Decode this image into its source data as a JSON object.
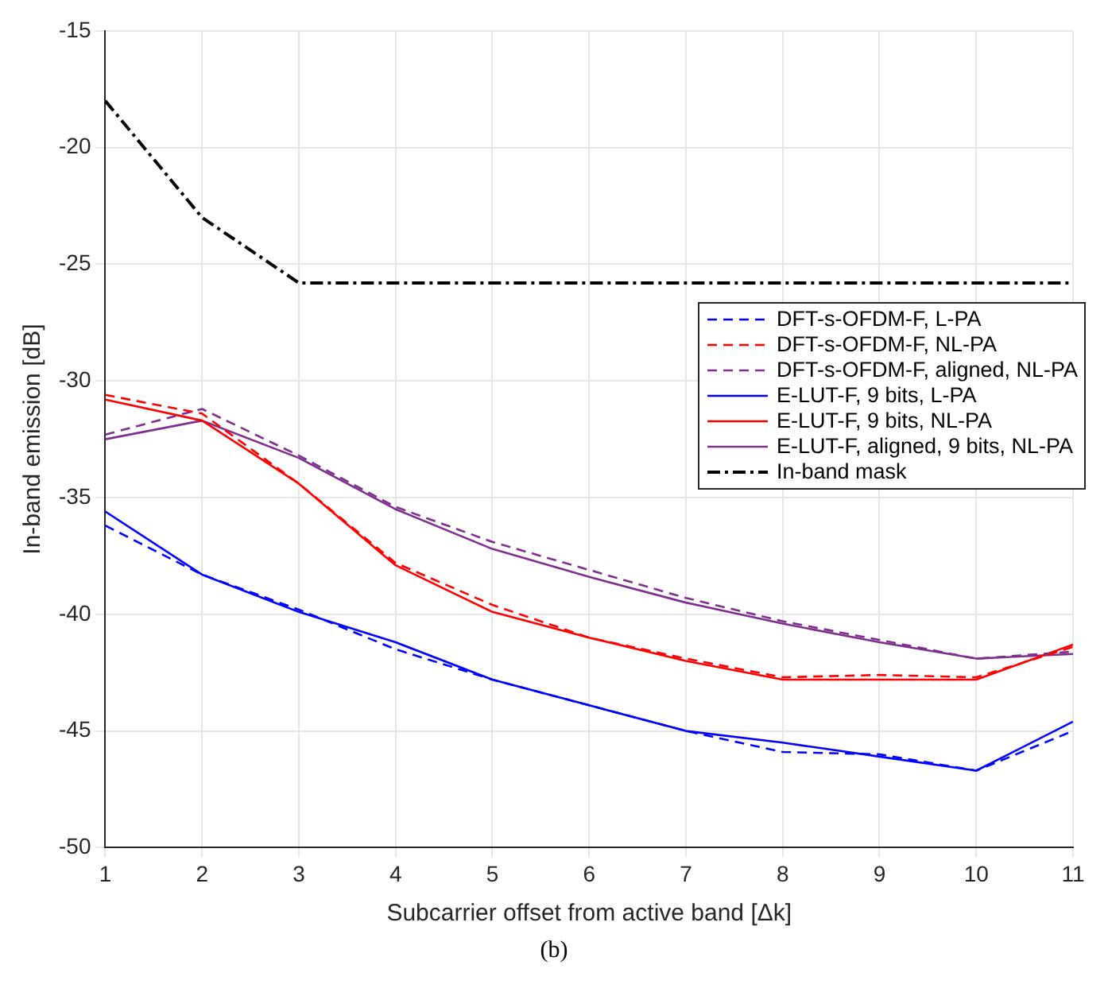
{
  "chart_data": {
    "type": "line",
    "xlabel": "Subcarrier offset from active band [Δk]",
    "ylabel": "In-band emission [dB]",
    "annotations": [
      "(b)"
    ],
    "x": [
      1,
      2,
      3,
      4,
      5,
      6,
      7,
      8,
      9,
      10,
      11
    ],
    "xlim": [
      1,
      11
    ],
    "xticks": [
      1,
      2,
      3,
      4,
      5,
      6,
      7,
      8,
      9,
      10,
      11
    ],
    "ylim": [
      -50,
      -15
    ],
    "yticks": [
      -50,
      -45,
      -40,
      -35,
      -30,
      -25,
      -20,
      -15
    ],
    "grid": true,
    "legend": "right",
    "marker": "none",
    "series": [
      {
        "name": "DFT-s-OFDM-F, L-PA",
        "color": "#0000ff",
        "line_style": "dashed",
        "values": [
          -36.2,
          -38.3,
          -39.8,
          -41.5,
          -42.8,
          -43.9,
          -45.0,
          -45.9,
          -46.0,
          -46.7,
          -45.0
        ]
      },
      {
        "name": "DFT-s-OFDM-F, NL-PA",
        "color": "#ff0000",
        "line_style": "dashed",
        "values": [
          -30.6,
          -31.4,
          -34.4,
          -37.8,
          -39.6,
          -41.0,
          -41.9,
          -42.7,
          -42.6,
          -42.7,
          -41.4
        ]
      },
      {
        "name": "DFT-s-OFDM-F, aligned, NL-PA",
        "color": "#7e2f8e",
        "line_style": "dashed",
        "values": [
          -32.3,
          -31.2,
          -33.2,
          -35.4,
          -36.9,
          -38.1,
          -39.3,
          -40.3,
          -41.1,
          -41.9,
          -41.6
        ]
      },
      {
        "name": "E-LUT-F, 9 bits, L-PA",
        "color": "#0000ff",
        "line_style": "solid",
        "values": [
          -35.6,
          -38.3,
          -39.9,
          -41.2,
          -42.8,
          -43.9,
          -45.0,
          -45.5,
          -46.1,
          -46.7,
          -44.6
        ]
      },
      {
        "name": "E-LUT-F, 9 bits, NL-PA",
        "color": "#ff0000",
        "line_style": "solid",
        "values": [
          -30.8,
          -31.7,
          -34.4,
          -37.9,
          -39.9,
          -41.0,
          -42.0,
          -42.8,
          -42.8,
          -42.8,
          -41.3
        ]
      },
      {
        "name": "E-LUT-F, aligned, 9 bits, NL-PA",
        "color": "#7e2f8e",
        "line_style": "solid",
        "values": [
          -32.5,
          -31.7,
          -33.3,
          -35.5,
          -37.2,
          -38.4,
          -39.5,
          -40.4,
          -41.2,
          -41.9,
          -41.7
        ]
      },
      {
        "name": "In-band mask",
        "color": "#000000",
        "line_style": "dashdot",
        "values": [
          -18,
          -23,
          -25.8,
          -25.8,
          -25.8,
          -25.8,
          -25.8,
          -25.8,
          -25.8,
          -25.8,
          -25.8
        ]
      }
    ]
  }
}
